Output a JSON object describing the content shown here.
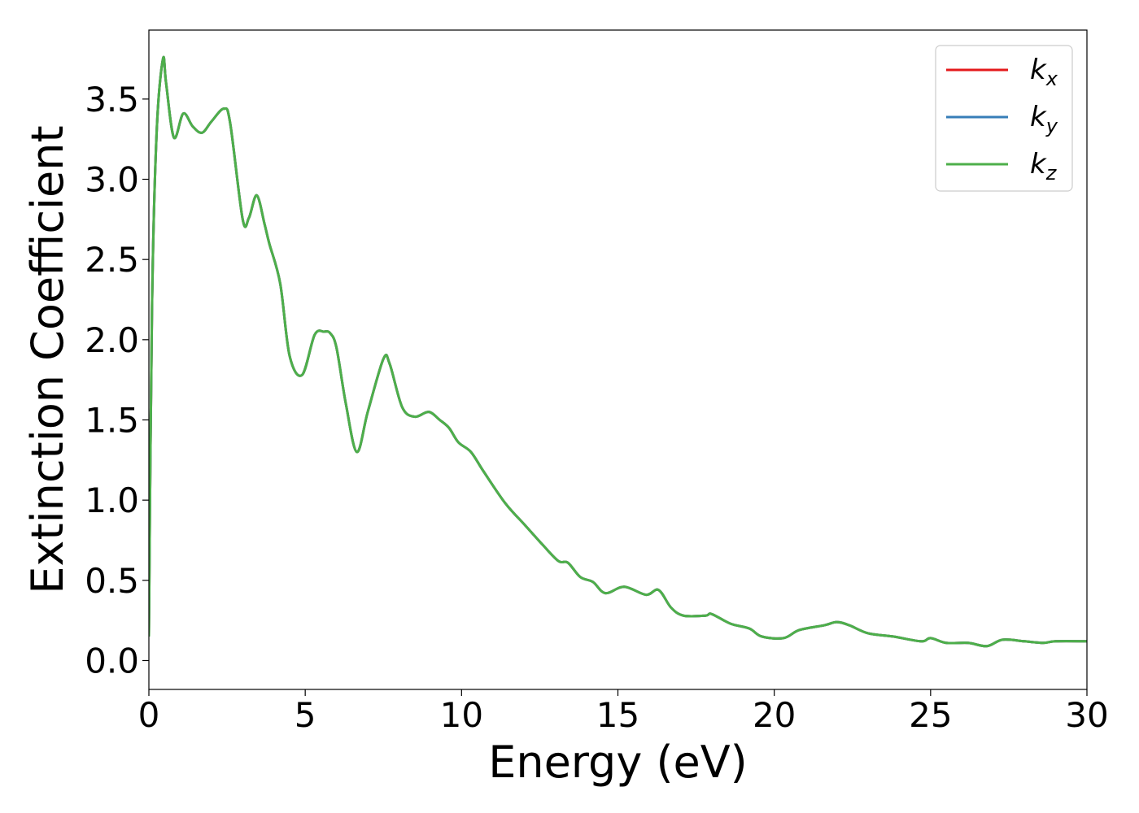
{
  "chart_data": {
    "type": "line",
    "title": "",
    "xlabel": "Energy (eV)",
    "ylabel": "Extinction Coefficient",
    "xlim": [
      0,
      30
    ],
    "ylim": [
      -0.18,
      3.93
    ],
    "xticks": [
      0,
      5,
      10,
      15,
      20,
      25,
      30
    ],
    "xtick_labels": [
      "0",
      "5",
      "10",
      "15",
      "20",
      "25",
      "30"
    ],
    "yticks": [
      0.0,
      0.5,
      1.0,
      1.5,
      2.0,
      2.5,
      3.0,
      3.5
    ],
    "ytick_labels": [
      "0.0",
      "0.5",
      "1.0",
      "1.5",
      "2.0",
      "2.5",
      "3.0",
      "3.5"
    ],
    "grid": false,
    "legend_position": "top-right",
    "x": [
      0,
      0.1,
      0.25,
      0.45,
      0.55,
      0.8,
      1.1,
      1.4,
      1.7,
      2.0,
      2.4,
      2.6,
      3.0,
      3.2,
      3.45,
      3.7,
      3.85,
      4.2,
      4.5,
      4.9,
      5.3,
      5.6,
      5.8,
      6.0,
      6.3,
      6.65,
      7.0,
      7.5,
      7.7,
      8.1,
      8.5,
      8.95,
      9.3,
      9.6,
      9.9,
      10.3,
      10.7,
      11.4,
      12.0,
      12.6,
      13.1,
      13.4,
      13.8,
      14.2,
      14.6,
      15.2,
      15.9,
      16.3,
      16.7,
      17.1,
      17.8,
      18.0,
      18.6,
      19.2,
      19.6,
      20.3,
      20.8,
      21.6,
      22.0,
      22.4,
      23.0,
      23.8,
      24.7,
      25.0,
      25.5,
      26.2,
      26.8,
      27.3,
      28.0,
      28.6,
      29.0,
      30.0
    ],
    "series": [
      {
        "name": "k_x",
        "label_base": "k",
        "label_sub": "x",
        "color": "#e41a1c",
        "values": [
          0.15,
          2.2,
          3.3,
          3.75,
          3.6,
          3.26,
          3.41,
          3.33,
          3.29,
          3.36,
          3.44,
          3.35,
          2.75,
          2.76,
          2.9,
          2.72,
          2.6,
          2.35,
          1.9,
          1.78,
          2.03,
          2.05,
          2.04,
          1.95,
          1.6,
          1.3,
          1.55,
          1.88,
          1.85,
          1.58,
          1.52,
          1.55,
          1.5,
          1.45,
          1.36,
          1.3,
          1.18,
          0.98,
          0.85,
          0.72,
          0.62,
          0.61,
          0.52,
          0.49,
          0.42,
          0.46,
          0.41,
          0.44,
          0.33,
          0.28,
          0.28,
          0.29,
          0.23,
          0.2,
          0.15,
          0.14,
          0.19,
          0.22,
          0.24,
          0.22,
          0.17,
          0.15,
          0.12,
          0.14,
          0.11,
          0.11,
          0.09,
          0.13,
          0.12,
          0.11,
          0.12,
          0.12
        ]
      },
      {
        "name": "k_y",
        "label_base": "k",
        "label_sub": "y",
        "color": "#377eb8",
        "values": [
          0.15,
          2.2,
          3.3,
          3.75,
          3.6,
          3.26,
          3.41,
          3.33,
          3.29,
          3.36,
          3.44,
          3.35,
          2.75,
          2.76,
          2.9,
          2.72,
          2.6,
          2.35,
          1.9,
          1.78,
          2.03,
          2.05,
          2.04,
          1.95,
          1.6,
          1.3,
          1.55,
          1.88,
          1.85,
          1.58,
          1.52,
          1.55,
          1.5,
          1.45,
          1.36,
          1.3,
          1.18,
          0.98,
          0.85,
          0.72,
          0.62,
          0.61,
          0.52,
          0.49,
          0.42,
          0.46,
          0.41,
          0.44,
          0.33,
          0.28,
          0.28,
          0.29,
          0.23,
          0.2,
          0.15,
          0.14,
          0.19,
          0.22,
          0.24,
          0.22,
          0.17,
          0.15,
          0.12,
          0.14,
          0.11,
          0.11,
          0.09,
          0.13,
          0.12,
          0.11,
          0.12,
          0.12
        ]
      },
      {
        "name": "k_z",
        "label_base": "k",
        "label_sub": "z",
        "color": "#4daf4a",
        "values": [
          0.15,
          2.2,
          3.3,
          3.75,
          3.6,
          3.26,
          3.41,
          3.33,
          3.29,
          3.36,
          3.44,
          3.35,
          2.75,
          2.76,
          2.9,
          2.72,
          2.6,
          2.35,
          1.9,
          1.78,
          2.03,
          2.05,
          2.04,
          1.95,
          1.6,
          1.3,
          1.55,
          1.88,
          1.85,
          1.58,
          1.52,
          1.55,
          1.5,
          1.45,
          1.36,
          1.3,
          1.18,
          0.98,
          0.85,
          0.72,
          0.62,
          0.61,
          0.52,
          0.49,
          0.42,
          0.46,
          0.41,
          0.44,
          0.33,
          0.28,
          0.28,
          0.29,
          0.23,
          0.2,
          0.15,
          0.14,
          0.19,
          0.22,
          0.24,
          0.22,
          0.17,
          0.15,
          0.12,
          0.14,
          0.11,
          0.11,
          0.09,
          0.13,
          0.12,
          0.11,
          0.12,
          0.12
        ]
      }
    ]
  }
}
